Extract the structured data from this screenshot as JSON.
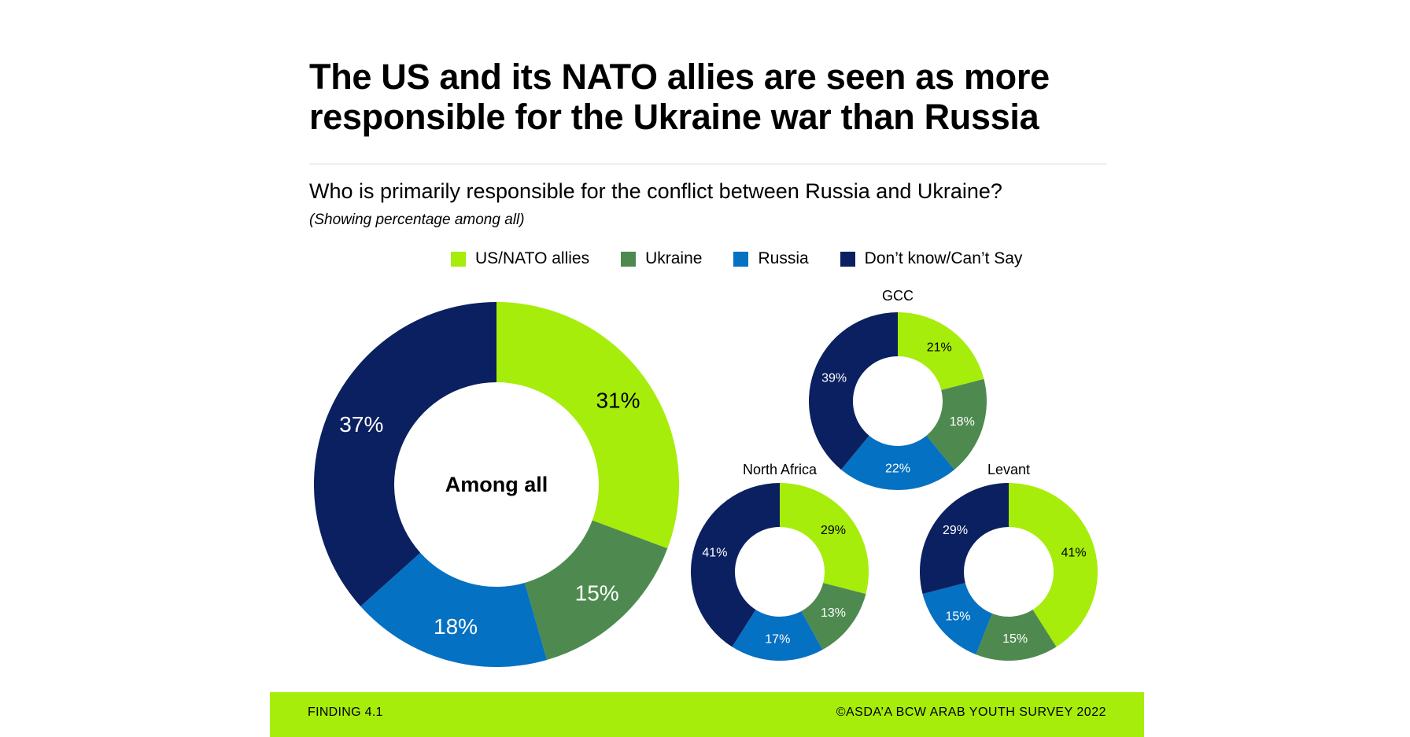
{
  "title": "The US and its NATO allies are seen as more responsible for the Ukraine war than Russia",
  "question": "Who is primarily responsible for the conflict between Russia and Ukraine?",
  "note": "(Showing percentage among all)",
  "colors": {
    "us_nato": "#a6ed0b",
    "ukraine": "#4e8a4f",
    "russia": "#0571c2",
    "dont_know": "#0b2060",
    "footer": "#a6ed0b"
  },
  "legend": [
    {
      "label": "US/NATO allies",
      "color": "#a6ed0b"
    },
    {
      "label": "Ukraine",
      "color": "#4e8a4f"
    },
    {
      "label": "Russia",
      "color": "#0571c2"
    },
    {
      "label": "Don’t know/Can’t Say",
      "color": "#0b2060"
    }
  ],
  "chart_data": [
    {
      "type": "pie",
      "title": "Among all",
      "categories": [
        "US/NATO allies",
        "Ukraine",
        "Russia",
        "Don’t know/Can’t Say"
      ],
      "values": [
        31,
        15,
        18,
        37
      ],
      "labels": [
        "31%",
        "15%",
        "18%",
        "37%"
      ]
    },
    {
      "type": "pie",
      "title": "GCC",
      "categories": [
        "US/NATO allies",
        "Ukraine",
        "Russia",
        "Don’t know/Can’t Say"
      ],
      "values": [
        21,
        18,
        22,
        39
      ],
      "labels": [
        "21%",
        "18%",
        "22%",
        "39%"
      ]
    },
    {
      "type": "pie",
      "title": "North Africa",
      "categories": [
        "US/NATO allies",
        "Ukraine",
        "Russia",
        "Don’t know/Can’t Say"
      ],
      "values": [
        29,
        13,
        17,
        41
      ],
      "labels": [
        "29%",
        "13%",
        "17%",
        "41%"
      ]
    },
    {
      "type": "pie",
      "title": "Levant",
      "categories": [
        "US/NATO allies",
        "Ukraine",
        "Russia",
        "Don’t know/Can’t Say"
      ],
      "values": [
        41,
        15,
        15,
        29
      ],
      "labels": [
        "41%",
        "15%",
        "15%",
        "29%"
      ]
    }
  ],
  "footer": {
    "left": "FINDING 4.1",
    "right": "©ASDA’A BCW ARAB YOUTH SURVEY 2022"
  }
}
